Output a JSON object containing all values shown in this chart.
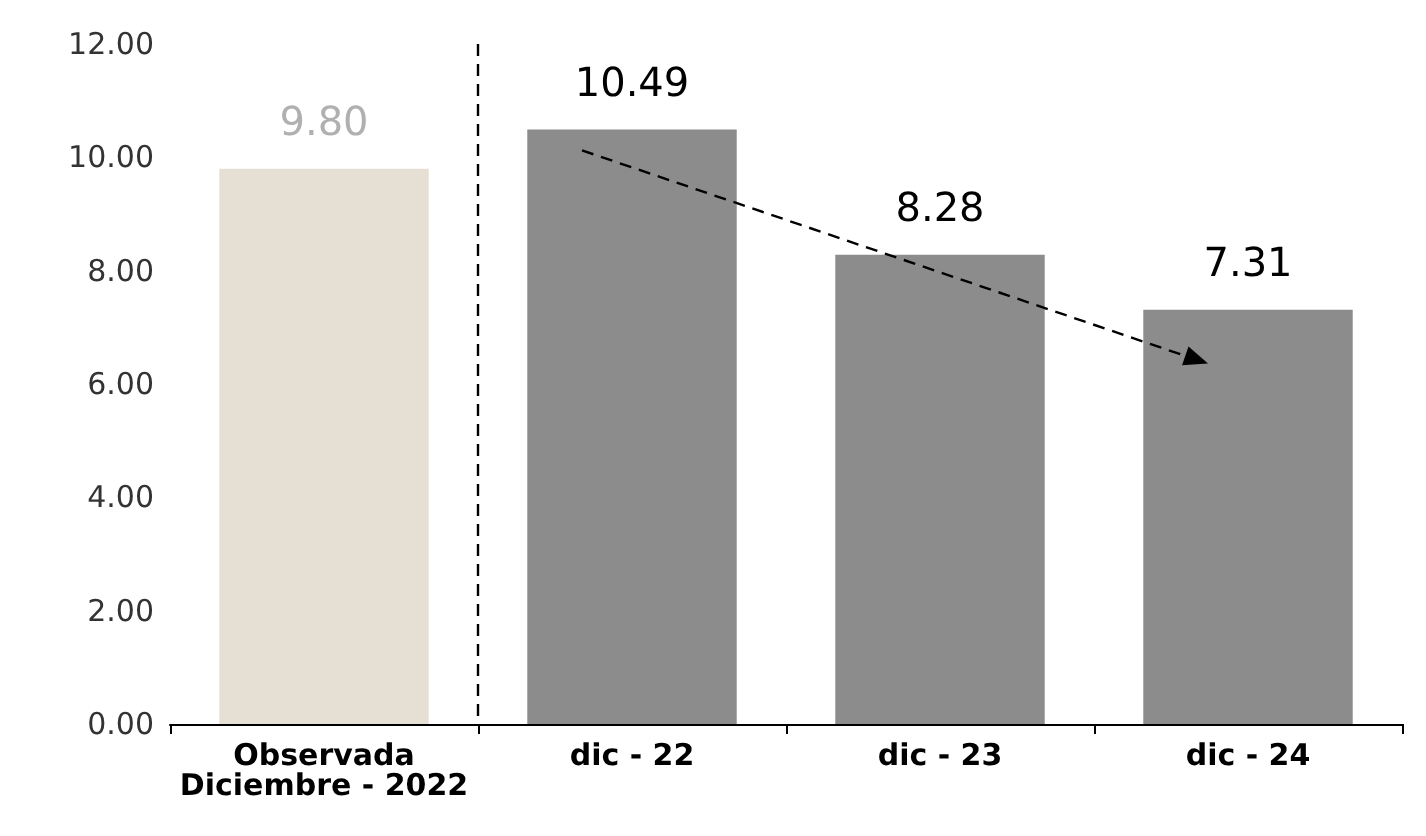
{
  "chart_data": {
    "type": "bar",
    "categories": [
      "Observada\nDiciembre - 2022",
      "dic - 22",
      "dic - 23",
      "dic - 24"
    ],
    "values": [
      9.8,
      10.49,
      8.28,
      7.31
    ],
    "colors": [
      "#e6dfd4",
      "#8c8c8c",
      "#8c8c8c",
      "#8c8c8c"
    ],
    "value_labels": [
      "9.80",
      "10.49",
      "8.28",
      "7.31"
    ],
    "ylim": [
      0,
      12
    ],
    "yticks": [
      {
        "value": 0,
        "label": "0.00"
      },
      {
        "value": 2,
        "label": "2.00"
      },
      {
        "value": 4,
        "label": "4.00"
      },
      {
        "value": 6,
        "label": "6.00"
      },
      {
        "value": 8,
        "label": "8.00"
      },
      {
        "value": 10,
        "label": "10.00"
      },
      {
        "value": 12,
        "label": "12.00"
      }
    ],
    "grid": false
  }
}
